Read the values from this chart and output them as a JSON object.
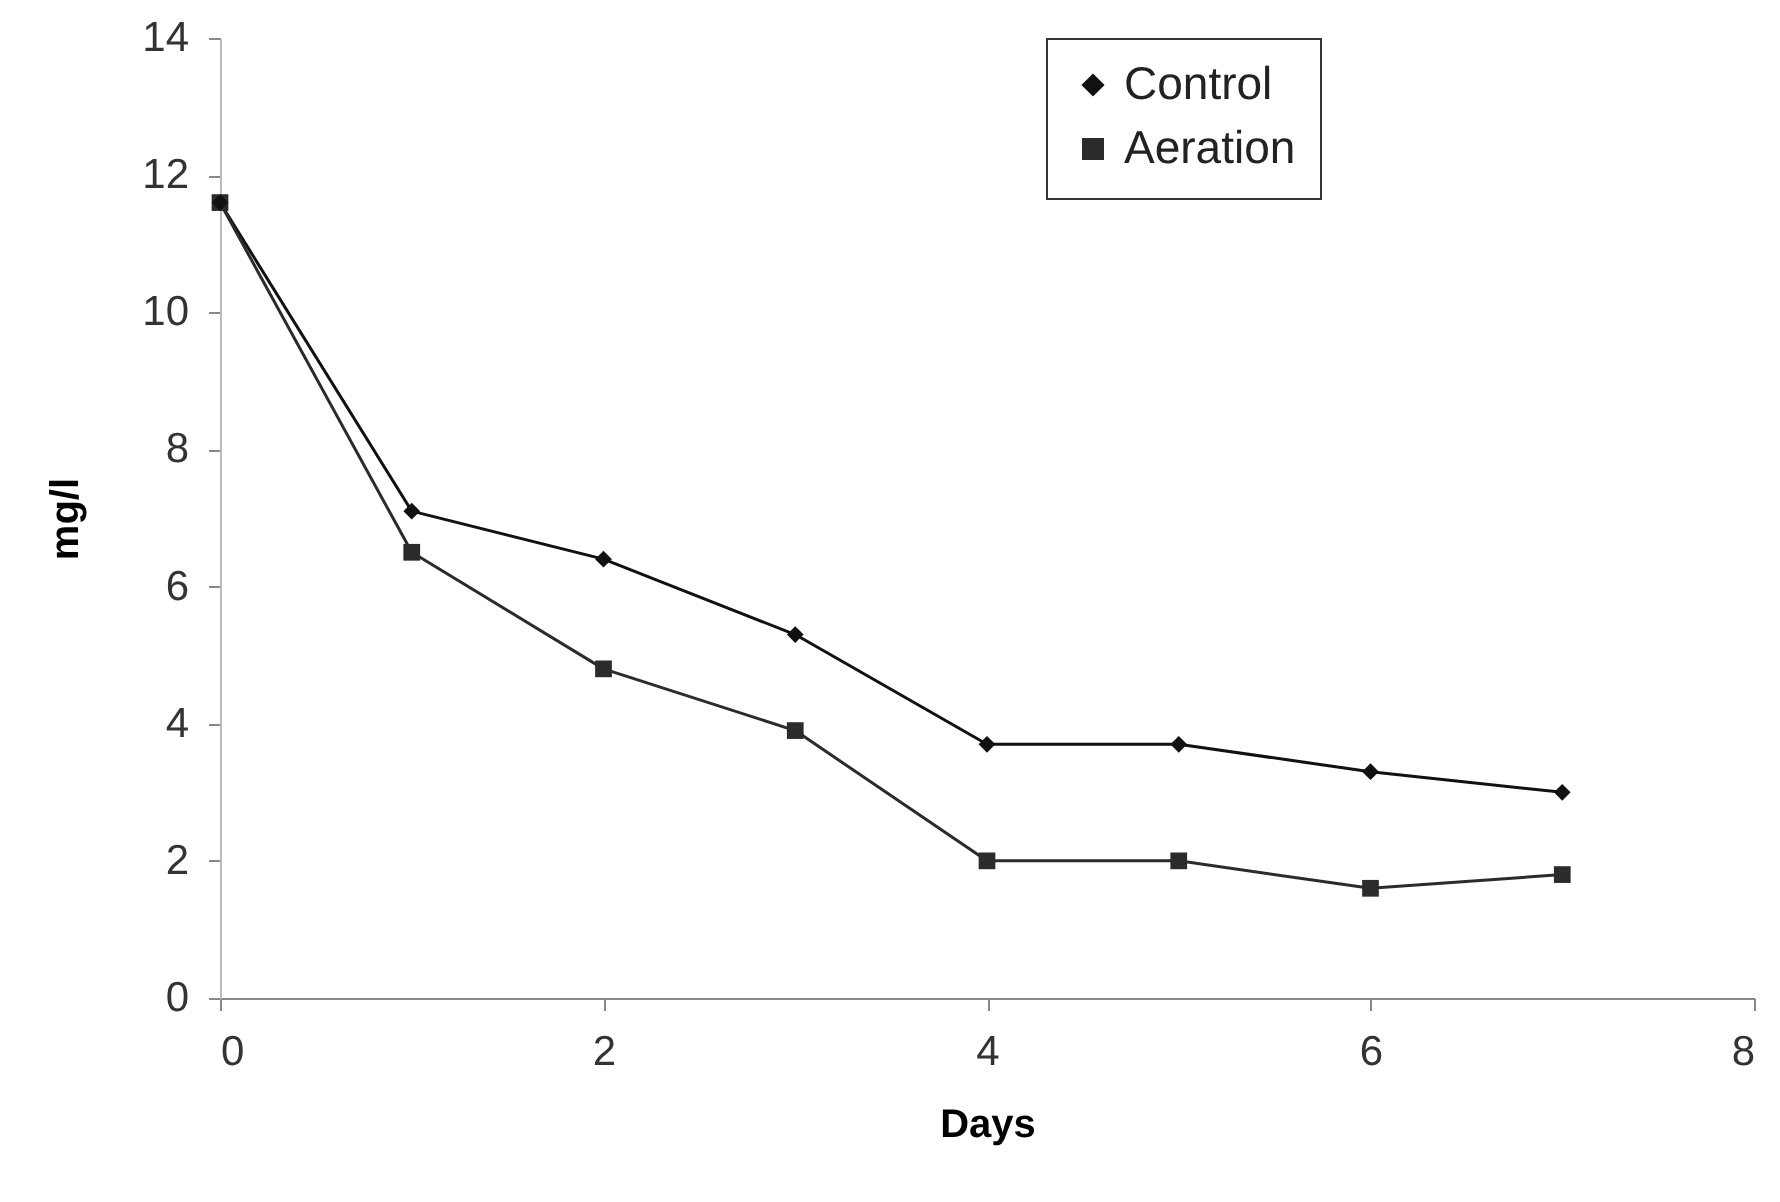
{
  "chart_data": {
    "type": "line",
    "xlabel": "Days",
    "ylabel": "mg/l",
    "x": [
      0,
      1,
      2,
      3,
      4,
      5,
      6,
      7
    ],
    "series": [
      {
        "name": "Control",
        "color": "#111111",
        "marker": "diamond",
        "values": [
          11.6,
          7.1,
          6.4,
          5.3,
          3.7,
          3.7,
          3.3,
          3.0
        ]
      },
      {
        "name": "Aeration",
        "color": "#2b2b2b",
        "marker": "square",
        "values": [
          11.6,
          6.5,
          4.8,
          3.9,
          2.0,
          2.0,
          1.6,
          1.8
        ]
      }
    ],
    "xlim": [
      0,
      8
    ],
    "xticks": [
      0,
      2,
      4,
      6,
      8
    ],
    "ylim": [
      0,
      14
    ],
    "yticks": [
      0,
      2,
      4,
      6,
      8,
      10,
      12,
      14
    ],
    "grid": false,
    "legend": "top right",
    "line_style": "solid"
  }
}
